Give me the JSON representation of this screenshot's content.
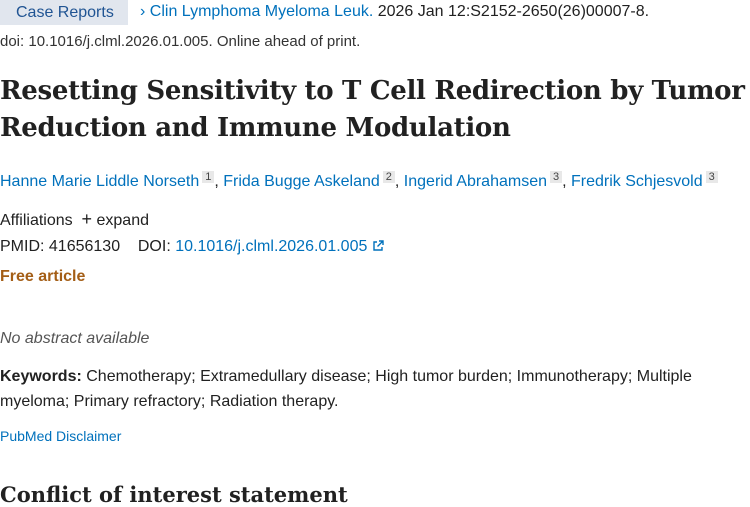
{
  "header": {
    "article_type": "Case Reports",
    "journal": "Clin Lymphoma Myeloma Leuk.",
    "citation": "2026 Jan 12:S2152-2650(26)00007-8.",
    "doi_line": "doi: 10.1016/j.clml.2026.01.005. Online ahead of print."
  },
  "title": "Resetting Sensitivity to T Cell Redirection by Tumor Reduction and Immune Modulation",
  "authors": [
    {
      "name": "Hanne Marie Liddle Norseth",
      "aff": "1"
    },
    {
      "name": "Frida Bugge Askeland",
      "aff": "2"
    },
    {
      "name": "Ingerid Abrahamsen",
      "aff": "3"
    },
    {
      "name": "Fredrik Schjesvold",
      "aff": "3"
    }
  ],
  "affiliations": {
    "label": "Affiliations",
    "expand": "expand"
  },
  "ids": {
    "pmid_label": "PMID:",
    "pmid": "41656130",
    "doi_label": "DOI:",
    "doi": "10.1016/j.clml.2026.01.005"
  },
  "free_article": "Free article",
  "no_abstract": "No abstract available",
  "keywords": {
    "label": "Keywords:",
    "text": "Chemotherapy; Extramedullary disease; High tumor burden; Immunotherapy; Multiple myeloma; Primary refractory; Radiation therapy."
  },
  "disclaimer": "PubMed Disclaimer",
  "section_heading": "Conflict of interest statement",
  "colors": {
    "link": "#0071bc",
    "free": "#a45e16",
    "pill_bg": "#e1e6ee"
  }
}
